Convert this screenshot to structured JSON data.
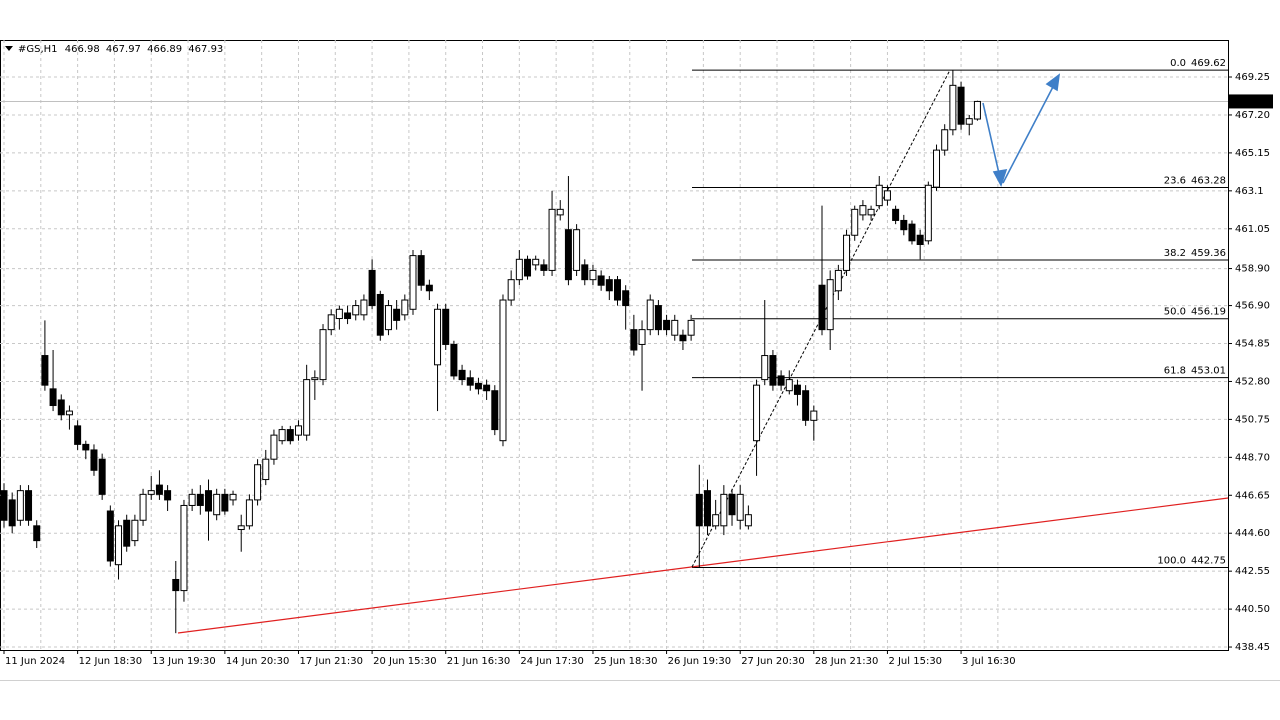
{
  "chart_data": {
    "type": "candlestick",
    "title": "#GS,H1",
    "categories": [
      "11 Jun 2024",
      null,
      null,
      null,
      null,
      null,
      null,
      null,
      null,
      "12 Jun 18:30",
      null,
      null,
      null,
      null,
      null,
      null,
      null,
      null,
      "13 Jun 19:30",
      null,
      null,
      null,
      null,
      null,
      null,
      null,
      null,
      "14 Jun 20:30",
      null,
      null,
      null,
      null,
      null,
      null,
      null,
      null,
      "17 Jun 21:30",
      null,
      null,
      null,
      null,
      null,
      null,
      null,
      null,
      "20 Jun 15:30",
      null,
      null,
      null,
      null,
      null,
      null,
      null,
      null,
      "21 Jun 16:30",
      null,
      null,
      null,
      null,
      null,
      null,
      null,
      null,
      "24 Jun 17:30",
      null,
      null,
      null,
      null,
      null,
      null,
      null,
      null,
      "25 Jun 18:30",
      null,
      null,
      null,
      null,
      null,
      null,
      null,
      null,
      "26 Jun 19:30",
      null,
      null,
      null,
      null,
      null,
      null,
      null,
      null,
      "27 Jun 20:30",
      null,
      null,
      null,
      null,
      null,
      null,
      null,
      null,
      "28 Jun 21:30",
      null,
      null,
      null,
      null,
      null,
      null,
      null,
      null,
      "2 Jul 15:30",
      null,
      null,
      null,
      null,
      null,
      null,
      null,
      null,
      "3 Jul 16:30",
      null,
      null
    ],
    "open": [
      446.9,
      446.4,
      445.3,
      446.9,
      445.0,
      454.2,
      452.4,
      451.8,
      451.0,
      450.4,
      449.4,
      449.1,
      448.6,
      445.8,
      442.9,
      445.3,
      444.2,
      445.3,
      446.7,
      447.2,
      446.9,
      442.1,
      441.5,
      446.1,
      446.7,
      446.9,
      445.6,
      446.7,
      446.4,
      444.8,
      445.0,
      446.4,
      447.5,
      448.6,
      449.6,
      450.2,
      449.9,
      449.9,
      452.9,
      452.9,
      455.6,
      456.2,
      456.5,
      456.4,
      456.4,
      458.8,
      457.5,
      455.6,
      456.7,
      456.4,
      456.7,
      459.6,
      458.0,
      453.7,
      456.7,
      454.8,
      453.4,
      453.0,
      452.7,
      452.6,
      452.3,
      449.6,
      457.2,
      458.3,
      459.4,
      459.1,
      459.1,
      458.8,
      461.8,
      461.0,
      458.8,
      459.1,
      458.3,
      458.5,
      458.3,
      458.3,
      457.7,
      455.6,
      454.8,
      455.6,
      456.9,
      456.1,
      455.3,
      455.3,
      455.3,
      446.7,
      446.9,
      445.0,
      445.0,
      446.7,
      445.3,
      445.0,
      449.6,
      452.9,
      454.2,
      453.1,
      452.3,
      452.6,
      452.3,
      450.7,
      458.0,
      455.6,
      457.7,
      458.8,
      460.7,
      461.8,
      461.8,
      462.3,
      462.6,
      462.1,
      461.5,
      461.3,
      460.7,
      460.4,
      463.3,
      465.3,
      466.4,
      468.7,
      466.7,
      466.98
    ],
    "high": [
      447.3,
      446.8,
      447.2,
      447.2,
      445.3,
      456.1,
      454.5,
      452.1,
      451.5,
      450.7,
      449.6,
      449.4,
      448.9,
      446.1,
      445.3,
      445.6,
      445.6,
      447.0,
      447.7,
      448.0,
      447.2,
      443.1,
      446.4,
      447.0,
      447.2,
      447.5,
      447.0,
      447.0,
      446.9,
      445.6,
      446.7,
      448.6,
      449.1,
      450.2,
      450.4,
      450.4,
      450.7,
      453.7,
      453.4,
      455.9,
      456.7,
      456.9,
      456.9,
      457.2,
      457.5,
      459.4,
      457.7,
      457.2,
      457.2,
      457.5,
      459.9,
      459.9,
      458.3,
      457.0,
      457.0,
      455.0,
      453.7,
      453.4,
      453.0,
      452.9,
      452.6,
      457.5,
      458.8,
      459.9,
      459.6,
      459.6,
      459.4,
      463.1,
      462.6,
      463.9,
      461.3,
      459.4,
      459.1,
      458.8,
      458.5,
      458.5,
      458.0,
      456.4,
      456.1,
      457.5,
      457.2,
      456.4,
      456.4,
      455.6,
      456.4,
      448.3,
      447.5,
      446.4,
      447.2,
      447.0,
      447.2,
      446.1,
      452.9,
      457.2,
      454.5,
      453.4,
      453.4,
      452.9,
      452.6,
      451.5,
      462.3,
      458.8,
      459.1,
      461.0,
      462.3,
      462.6,
      462.3,
      463.9,
      463.4,
      462.3,
      461.8,
      461.5,
      461.0,
      463.6,
      465.6,
      466.7,
      469.62,
      469.0,
      467.2,
      467.97
    ],
    "low": [
      444.9,
      444.6,
      445.0,
      445.0,
      443.8,
      452.3,
      451.2,
      450.7,
      450.2,
      449.1,
      448.6,
      447.7,
      446.4,
      442.8,
      442.1,
      443.6,
      443.9,
      445.0,
      446.4,
      446.4,
      445.8,
      439.2,
      440.9,
      445.8,
      445.6,
      444.2,
      445.3,
      445.6,
      446.1,
      443.6,
      444.8,
      446.1,
      447.2,
      448.3,
      449.4,
      449.4,
      449.6,
      449.6,
      451.8,
      452.6,
      455.3,
      455.6,
      455.9,
      456.1,
      456.1,
      456.7,
      455.0,
      455.3,
      455.6,
      456.1,
      456.4,
      457.7,
      457.2,
      451.2,
      454.5,
      452.9,
      452.6,
      452.3,
      452.1,
      451.8,
      449.9,
      449.3,
      456.9,
      458.0,
      458.3,
      458.8,
      458.5,
      458.5,
      461.5,
      458.0,
      458.5,
      458.0,
      458.0,
      457.7,
      457.2,
      456.9,
      455.6,
      454.2,
      452.3,
      455.3,
      455.3,
      455.3,
      455.0,
      454.5,
      455.0,
      442.75,
      444.5,
      444.8,
      444.5,
      445.0,
      444.8,
      444.8,
      447.7,
      452.6,
      452.3,
      452.3,
      452.1,
      451.5,
      450.4,
      449.6,
      455.3,
      454.5,
      457.2,
      458.5,
      460.4,
      461.5,
      461.5,
      462.1,
      462.3,
      461.3,
      460.7,
      460.2,
      459.4,
      460.2,
      463.1,
      465.0,
      466.1,
      466.4,
      466.1,
      466.89
    ],
    "close": [
      445.3,
      445.0,
      446.9,
      445.3,
      444.2,
      452.6,
      451.5,
      451.0,
      451.2,
      449.4,
      449.1,
      448.0,
      446.7,
      443.1,
      445.0,
      443.9,
      445.3,
      446.7,
      446.9,
      446.7,
      446.4,
      441.5,
      446.1,
      446.7,
      446.1,
      445.8,
      446.7,
      445.8,
      446.7,
      445.0,
      446.4,
      448.3,
      448.6,
      449.9,
      450.2,
      449.6,
      450.4,
      452.9,
      453.0,
      455.6,
      456.4,
      456.7,
      456.2,
      456.9,
      457.2,
      456.9,
      455.3,
      456.9,
      456.1,
      457.2,
      459.6,
      458.0,
      457.7,
      456.7,
      454.8,
      453.1,
      452.9,
      452.6,
      452.4,
      452.3,
      450.2,
      457.2,
      458.3,
      459.4,
      458.5,
      459.4,
      458.8,
      462.1,
      462.1,
      458.3,
      461.0,
      458.3,
      458.8,
      458.0,
      457.7,
      457.2,
      456.9,
      454.5,
      455.6,
      457.2,
      455.6,
      455.6,
      456.1,
      455.0,
      456.1,
      445.0,
      445.0,
      445.6,
      446.7,
      445.6,
      446.7,
      445.6,
      452.6,
      454.2,
      452.6,
      452.6,
      452.9,
      452.1,
      450.7,
      451.2,
      455.6,
      458.3,
      458.8,
      460.7,
      462.1,
      462.3,
      462.1,
      463.4,
      463.1,
      461.5,
      461.0,
      460.4,
      460.2,
      463.4,
      465.3,
      466.4,
      468.8,
      466.7,
      467.0,
      467.93
    ],
    "up_color": "#ffffff",
    "down_color": "#000000",
    "ylim": [
      438.29,
      471.25
    ],
    "yticks": [
      469.25,
      {
        "value": 467.2,
        "label": "467.20"
      },
      465.15,
      463.1,
      461.05,
      {
        "value": 458.9,
        "label": "458.90"
      },
      {
        "value": 456.9,
        "label": "456.90"
      },
      454.85,
      {
        "value": 452.8,
        "label": "452.80"
      },
      450.75,
      {
        "value": 448.7,
        "label": "448.70"
      },
      446.65,
      {
        "value": 444.6,
        "label": "444.60"
      },
      442.55,
      {
        "value": 440.5,
        "label": "440.50"
      },
      438.45
    ],
    "grid": true,
    "fib_levels": [
      {
        "level": "0.0",
        "price": 469.62
      },
      {
        "level": "23.6",
        "price": 463.28
      },
      {
        "level": "38.2",
        "price": 459.36
      },
      {
        "level": "50.0",
        "price": 456.19
      },
      {
        "level": "61.8",
        "price": 453.01
      },
      {
        "level": "100.0",
        "price": 442.75
      }
    ]
  }
}
